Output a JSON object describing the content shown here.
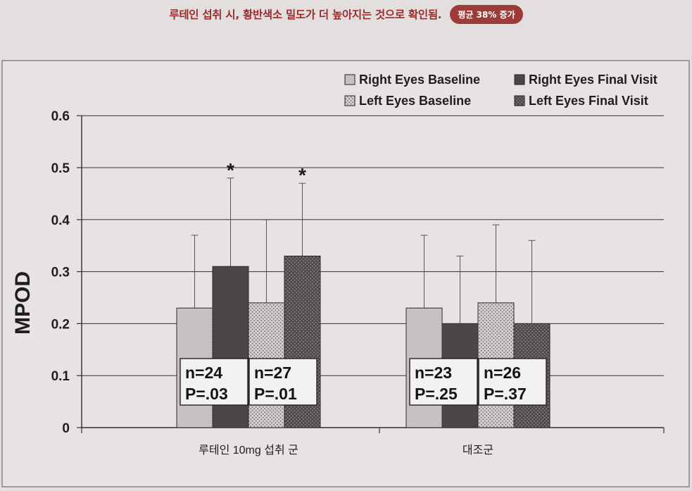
{
  "header": {
    "text": "루테인 섭취 시, 황반색소 밀도가 더 높아지는 것으로 확인됨.",
    "badge": "평균 38% 증가"
  },
  "colors": {
    "headline": "#9e2b2b",
    "badge_bg": "#9e3a37",
    "right_baseline": "#c9c2c2",
    "right_final": "#4f4848",
    "left_baseline": "#b8b0b0",
    "left_final": "#5e5656"
  },
  "chart_data": {
    "type": "bar",
    "ylabel": "MPOD",
    "ylim": [
      0,
      0.6
    ],
    "yticks": [
      {
        "value": 0.6,
        "label": "0.6"
      },
      {
        "value": 0.5,
        "label": "0.5"
      },
      {
        "value": 0.4,
        "label": "0.4"
      },
      {
        "value": 0.3,
        "label": "0.3"
      },
      {
        "value": 0.2,
        "label": "0.2"
      },
      {
        "value": 0.1,
        "label": "0.1"
      },
      {
        "value": 0,
        "label": "0"
      }
    ],
    "grid": true,
    "legend_position": "top-right",
    "categories": [
      "루테인 10mg  섭취 군",
      "대조군"
    ],
    "series": [
      {
        "name": "Right Eyes Baseline",
        "pattern": "light",
        "values": [
          0.23,
          0.23
        ],
        "errors": [
          0.14,
          0.14
        ]
      },
      {
        "name": "Right Eyes Final Visit",
        "pattern": "dark",
        "values": [
          0.31,
          0.2
        ],
        "errors": [
          0.17,
          0.13
        ]
      },
      {
        "name": "Left Eyes Baseline",
        "pattern": "light-dots",
        "values": [
          0.24,
          0.24
        ],
        "errors": [
          0.16,
          0.15
        ]
      },
      {
        "name": "Left Eyes Final Visit",
        "pattern": "dark-dots",
        "values": [
          0.33,
          0.2
        ],
        "errors": [
          0.14,
          0.16
        ]
      }
    ],
    "significance": [
      {
        "category": 0,
        "series": 1,
        "symbol": "*"
      },
      {
        "category": 0,
        "series": 3,
        "symbol": "*"
      }
    ],
    "annotations": [
      {
        "category": 0,
        "eye": "right",
        "n": "n=24",
        "p": "P=.03"
      },
      {
        "category": 0,
        "eye": "left",
        "n": "n=27",
        "p": "P=.01"
      },
      {
        "category": 1,
        "eye": "right",
        "n": "n=23",
        "p": "P=.25"
      },
      {
        "category": 1,
        "eye": "left",
        "n": "n=26",
        "p": "P=.37"
      }
    ]
  }
}
